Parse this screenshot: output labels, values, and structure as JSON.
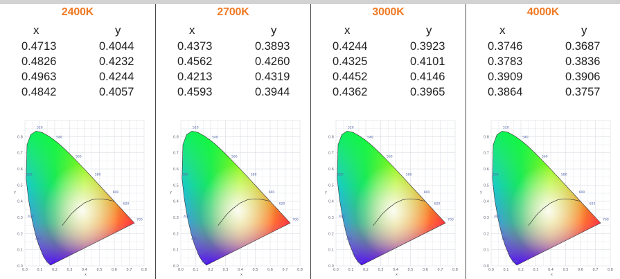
{
  "columns": [
    {
      "temperature": "2400K",
      "x_label": "x",
      "y_label": "y",
      "rows": [
        {
          "x": "0.4713",
          "y": "0.4044"
        },
        {
          "x": "0.4826",
          "y": "0.4232"
        },
        {
          "x": "0.4963",
          "y": "0.4244"
        },
        {
          "x": "0.4842",
          "y": "0.4057"
        }
      ]
    },
    {
      "temperature": "2700K",
      "x_label": "x",
      "y_label": "y",
      "rows": [
        {
          "x": "0.4373",
          "y": "0.3893"
        },
        {
          "x": "0.4562",
          "y": "0.4260"
        },
        {
          "x": "0.4213",
          "y": "0.4319"
        },
        {
          "x": "0.4593",
          "y": "0.3944"
        }
      ]
    },
    {
      "temperature": "3000K",
      "x_label": "x",
      "y_label": "y",
      "rows": [
        {
          "x": "0.4244",
          "y": "0.3923"
        },
        {
          "x": "0.4325",
          "y": "0.4101"
        },
        {
          "x": "0.4452",
          "y": "0.4146"
        },
        {
          "x": "0.4362",
          "y": "0.3965"
        }
      ]
    },
    {
      "temperature": "4000K",
      "x_label": "x",
      "y_label": "y",
      "rows": [
        {
          "x": "0.3746",
          "y": "0.3687"
        },
        {
          "x": "0.3783",
          "y": "0.3836"
        },
        {
          "x": "0.3909",
          "y": "0.3906"
        },
        {
          "x": "0.3864",
          "y": "0.3757"
        }
      ]
    }
  ],
  "diagram": {
    "type": "CIE 1931 chromaticity diagram",
    "x_ticks": [
      "0.0",
      "0.1",
      "0.2",
      "0.3",
      "0.4",
      "0.5",
      "0.6",
      "0.7",
      "0.8"
    ],
    "y_ticks": [
      "0.0",
      "0.1",
      "0.2",
      "0.3",
      "0.4",
      "0.5",
      "0.6",
      "0.7",
      "0.8"
    ],
    "axis_x_label": "x",
    "axis_y_label": "y",
    "wavelength_labels": [
      "520",
      "540",
      "560",
      "580",
      "600",
      "620",
      "700",
      "500",
      "490",
      "480",
      "470",
      "460"
    ],
    "accent_color": "#f07a24",
    "divider_color": "#4a4a4a"
  }
}
